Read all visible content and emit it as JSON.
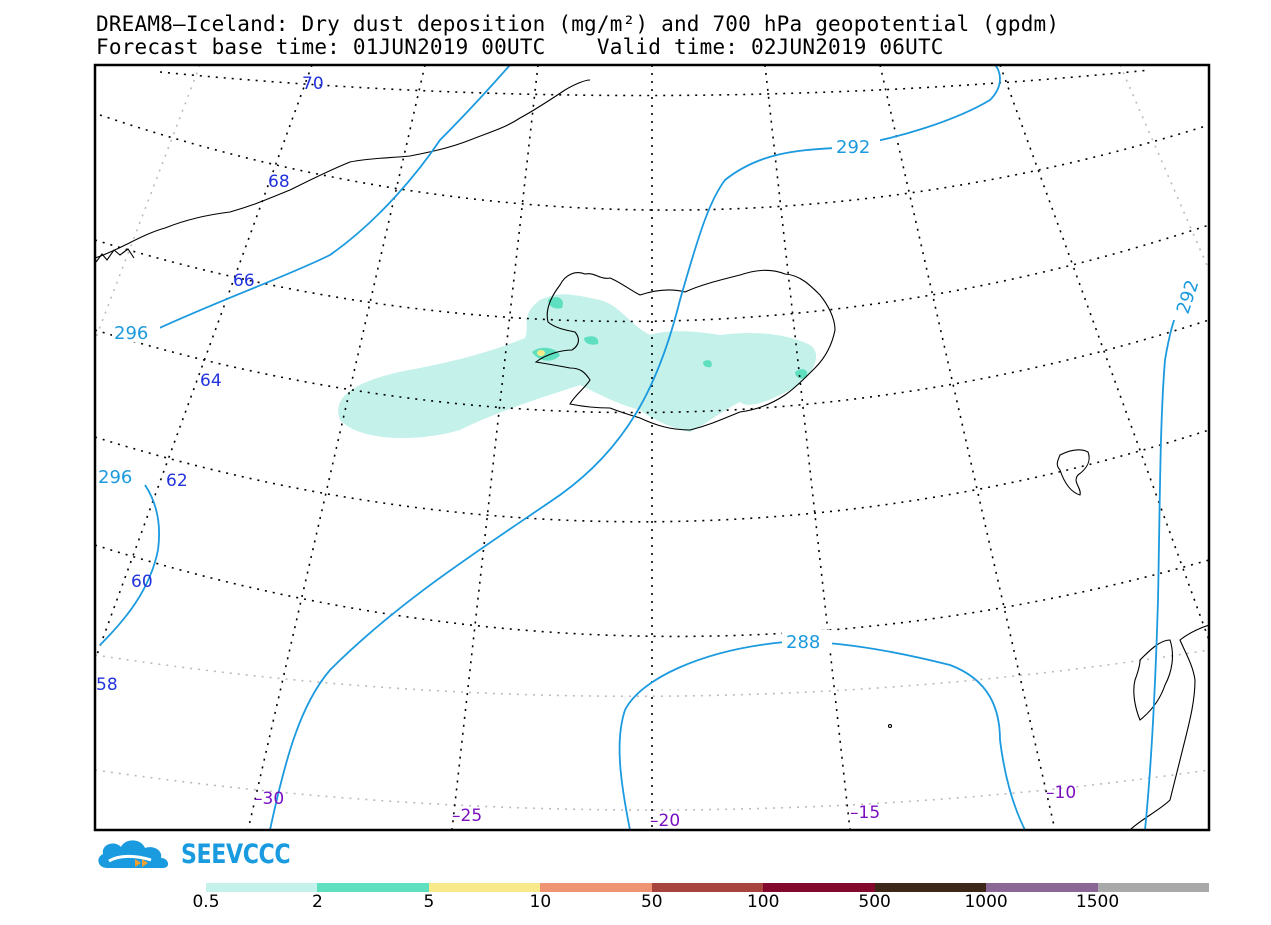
{
  "header": {
    "title_line1": "DREAM8—Iceland: Dry dust deposition (mg/m²) and 700 hPa geopotential (gpdm)",
    "title_line2": "Forecast base time: 01JUN2019 00UTC    Valid time: 02JUN2019 06UTC"
  },
  "map": {
    "latitude_labels": [
      "70",
      "68",
      "66",
      "64",
      "62",
      "60",
      "58"
    ],
    "longitude_labels": [
      "–30",
      "–25",
      "–20",
      "–15",
      "–10"
    ],
    "contour_labels": [
      "292",
      "296",
      "296",
      "292",
      "288"
    ],
    "colors": {
      "contour": "#1b9ae0",
      "coastline": "#000000",
      "grid": "#000000",
      "dust_light": "#c4f1ea",
      "dust_medium": "#5ee0c0"
    }
  },
  "logo": {
    "text": "SEEVCCC",
    "icon": "cloud-logo-icon",
    "color": "#1a9be0"
  },
  "colorbar": {
    "labels": [
      "0.5",
      "2",
      "5",
      "10",
      "50",
      "100",
      "500",
      "1000",
      "1500"
    ],
    "colors": [
      "#c4f1ea",
      "#5ee0c0",
      "#f8e98a",
      "#ef9472",
      "#a8443e",
      "#82082e",
      "#3c2718",
      "#8b6795",
      "#a9a9a9"
    ]
  }
}
